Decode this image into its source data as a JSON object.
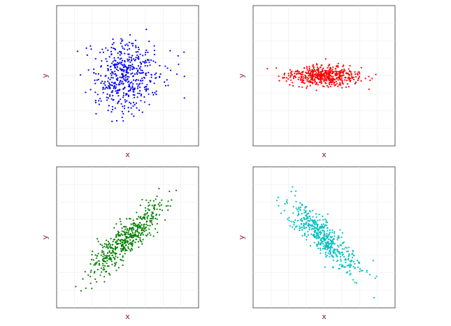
{
  "chart_data": [
    {
      "type": "scatter",
      "xlabel": "x",
      "ylabel": "y",
      "grid": true,
      "color": "#0000ff",
      "center": [
        0,
        0
      ],
      "sd": [
        1.0,
        1.0
      ],
      "correlation": 0.0,
      "n_points": 500,
      "xlim": [
        -4,
        4
      ],
      "ylim": [
        -4,
        4
      ]
    },
    {
      "type": "scatter",
      "xlabel": "x",
      "ylabel": "y",
      "grid": true,
      "color": "#ff0000",
      "center": [
        0,
        0
      ],
      "sd": [
        1.0,
        0.3
      ],
      "correlation": 0.0,
      "n_points": 500,
      "xlim": [
        -4,
        4
      ],
      "ylim": [
        -4,
        4
      ]
    },
    {
      "type": "scatter",
      "xlabel": "x",
      "ylabel": "y",
      "grid": true,
      "color": "#008000",
      "center": [
        0,
        0
      ],
      "sd": [
        1.0,
        1.0
      ],
      "correlation": 0.85,
      "n_points": 500,
      "xlim": [
        -4,
        4
      ],
      "ylim": [
        -4,
        4
      ]
    },
    {
      "type": "scatter",
      "xlabel": "x",
      "ylabel": "y",
      "grid": true,
      "color": "#00bfbf",
      "center": [
        0,
        0
      ],
      "sd": [
        1.0,
        1.0
      ],
      "correlation": -0.85,
      "n_points": 500,
      "xlim": [
        -4,
        4
      ],
      "ylim": [
        -4,
        4
      ]
    }
  ]
}
